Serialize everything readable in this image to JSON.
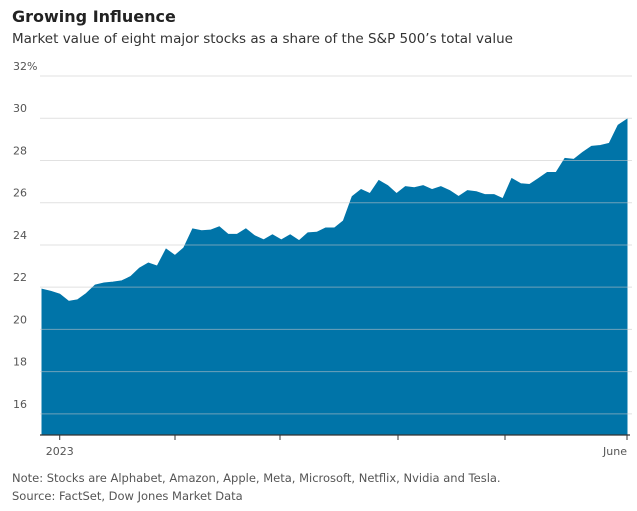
{
  "chart_data": {
    "type": "area",
    "title": "Growing Influence",
    "subtitle": "Market value of eight major stocks as a share of the S&P 500’s total value",
    "note": "Note: Stocks are Alphabet, Amazon, Apple, Meta, Microsoft, Netflix, Nvidia and Tesla.",
    "source": "Source: FactSet, Dow Jones Market Data",
    "color": "#0074a8",
    "grid": true,
    "ylim": [
      15,
      32
    ],
    "yticks": [
      {
        "value": 32,
        "label": "32%"
      },
      30,
      28,
      26,
      24,
      22,
      20,
      18,
      16
    ],
    "categories": [
      null,
      null,
      "2023",
      null,
      null,
      null,
      null,
      null,
      null,
      null,
      null,
      null,
      null,
      null,
      null,
      null,
      null,
      null,
      null,
      null,
      null,
      null,
      null,
      null,
      null,
      null,
      null,
      null,
      null,
      null,
      null,
      null,
      null,
      null,
      null,
      null,
      null,
      null,
      null,
      null,
      null,
      null,
      null,
      null,
      null,
      null,
      null,
      null,
      null,
      null,
      null,
      null,
      null,
      null,
      null,
      null,
      null,
      null,
      null,
      null,
      null,
      null,
      null,
      null,
      null,
      null,
      "June"
    ],
    "values": [
      21.9,
      21.8,
      21.67,
      21.33,
      21.4,
      21.7,
      22.1,
      22.2,
      22.24,
      22.3,
      22.5,
      22.9,
      23.14,
      23.0,
      23.8,
      23.5,
      23.86,
      24.76,
      24.67,
      24.7,
      24.86,
      24.5,
      24.5,
      24.76,
      24.43,
      24.24,
      24.48,
      24.24,
      24.48,
      24.2,
      24.57,
      24.6,
      24.8,
      24.8,
      25.14,
      26.29,
      26.62,
      26.43,
      27.05,
      26.81,
      26.43,
      26.76,
      26.71,
      26.81,
      26.62,
      26.76,
      26.57,
      26.29,
      26.57,
      26.52,
      26.38,
      26.38,
      26.19,
      27.14,
      26.9,
      26.86,
      27.14,
      27.43,
      27.43,
      28.1,
      28.05,
      28.38,
      28.67,
      28.71,
      28.81,
      29.67,
      29.95
    ]
  }
}
